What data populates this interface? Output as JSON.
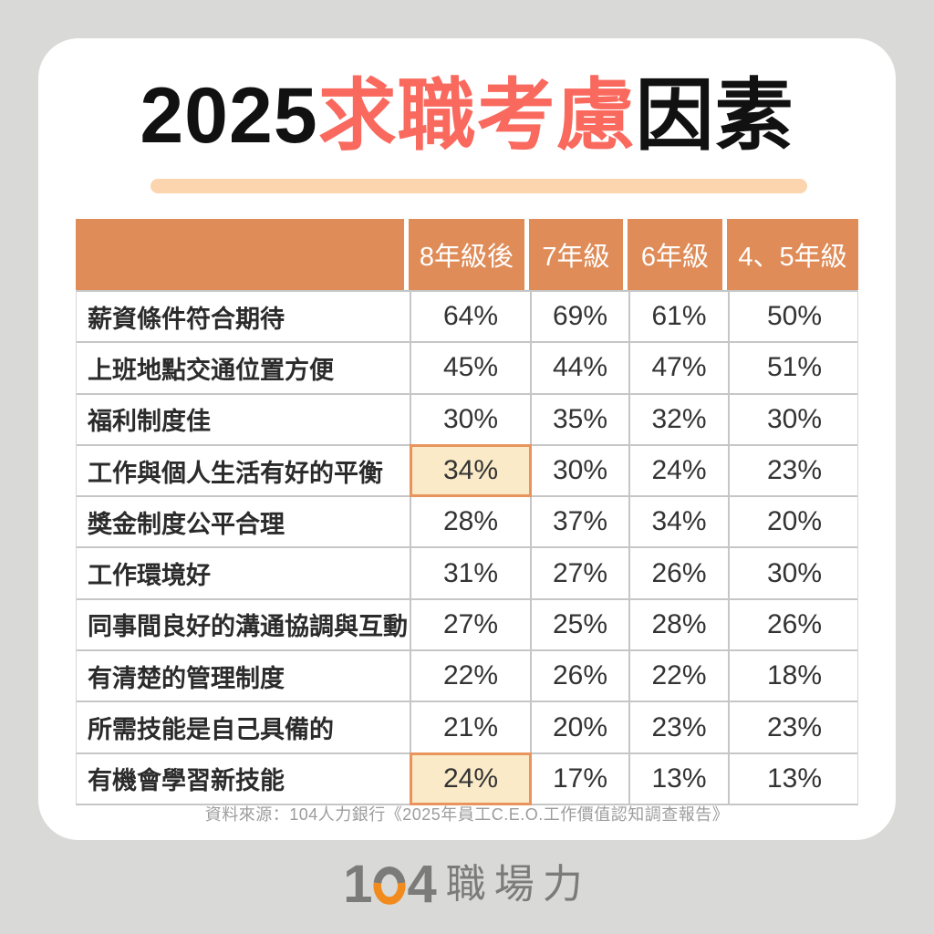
{
  "title": {
    "prefix": "2025",
    "highlight": "求職考慮",
    "suffix": "因素"
  },
  "colors": {
    "background": "#D9D9D7",
    "card": "#FFFFFF",
    "title_black": "#111111",
    "title_red": "#F9695E",
    "underline": "#FCD5AF",
    "header_bg": "#DF8C58",
    "header_text": "#FFFFFF",
    "row_border": "#C6C6C6",
    "highlight_bg": "#FAEAC7",
    "highlight_border": "#E8945C",
    "source_text": "#9C9C9C",
    "logo_gray": "#7B7B79",
    "logo_orange": "#F28B1D"
  },
  "table": {
    "columns": [
      "8年級後",
      "7年級",
      "6年級",
      "4、5年級"
    ],
    "rows": [
      {
        "label": "薪資條件符合期待",
        "values": [
          "64%",
          "69%",
          "61%",
          "50%"
        ],
        "highlight": []
      },
      {
        "label": "上班地點交通位置方便",
        "values": [
          "45%",
          "44%",
          "47%",
          "51%"
        ],
        "highlight": []
      },
      {
        "label": "福利制度佳",
        "values": [
          "30%",
          "35%",
          "32%",
          "30%"
        ],
        "highlight": []
      },
      {
        "label": "工作與個人生活有好的平衡",
        "values": [
          "34%",
          "30%",
          "24%",
          "23%"
        ],
        "highlight": [
          0
        ]
      },
      {
        "label": "獎金制度公平合理",
        "values": [
          "28%",
          "37%",
          "34%",
          "20%"
        ],
        "highlight": []
      },
      {
        "label": "工作環境好",
        "values": [
          "31%",
          "27%",
          "26%",
          "30%"
        ],
        "highlight": []
      },
      {
        "label": "同事間良好的溝通協調與互動",
        "values": [
          "27%",
          "25%",
          "28%",
          "26%"
        ],
        "highlight": []
      },
      {
        "label": "有清楚的管理制度",
        "values": [
          "22%",
          "26%",
          "22%",
          "18%"
        ],
        "highlight": []
      },
      {
        "label": "所需技能是自己具備的",
        "values": [
          "21%",
          "20%",
          "23%",
          "23%"
        ],
        "highlight": []
      },
      {
        "label": "有機會學習新技能",
        "values": [
          "24%",
          "17%",
          "13%",
          "13%"
        ],
        "highlight": [
          0
        ]
      }
    ]
  },
  "source": "資料來源：104人力銀行《2025年員工C.E.O.工作價值認知調查報告》",
  "footer_logo": {
    "digit_one": "1",
    "digit_four": "4",
    "text": "職場力"
  },
  "chart_data": {
    "type": "table",
    "title": "2025求職考慮因素",
    "categories": [
      "8年級後",
      "7年級",
      "6年級",
      "4、5年級"
    ],
    "row_labels": [
      "薪資條件符合期待",
      "上班地點交通位置方便",
      "福利制度佳",
      "工作與個人生活有好的平衡",
      "獎金制度公平合理",
      "工作環境好",
      "同事間良好的溝通協調與互動",
      "有清楚的管理制度",
      "所需技能是自己具備的",
      "有機會學習新技能"
    ],
    "series": [
      {
        "name": "8年級後",
        "values": [
          64,
          45,
          30,
          34,
          28,
          31,
          27,
          22,
          21,
          24
        ]
      },
      {
        "name": "7年級",
        "values": [
          69,
          44,
          35,
          30,
          37,
          27,
          25,
          26,
          20,
          17
        ]
      },
      {
        "name": "6年級",
        "values": [
          61,
          47,
          32,
          24,
          34,
          26,
          28,
          22,
          23,
          13
        ]
      },
      {
        "name": "4、5年級",
        "values": [
          50,
          51,
          30,
          23,
          20,
          30,
          26,
          18,
          23,
          13
        ]
      }
    ],
    "unit": "%",
    "highlights": [
      {
        "row": "工作與個人生活有好的平衡",
        "column": "8年級後",
        "value": 34
      },
      {
        "row": "有機會學習新技能",
        "column": "8年級後",
        "value": 24
      }
    ],
    "source": "資料來源：104人力銀行《2025年員工C.E.O.工作價值認知調查報告》"
  }
}
